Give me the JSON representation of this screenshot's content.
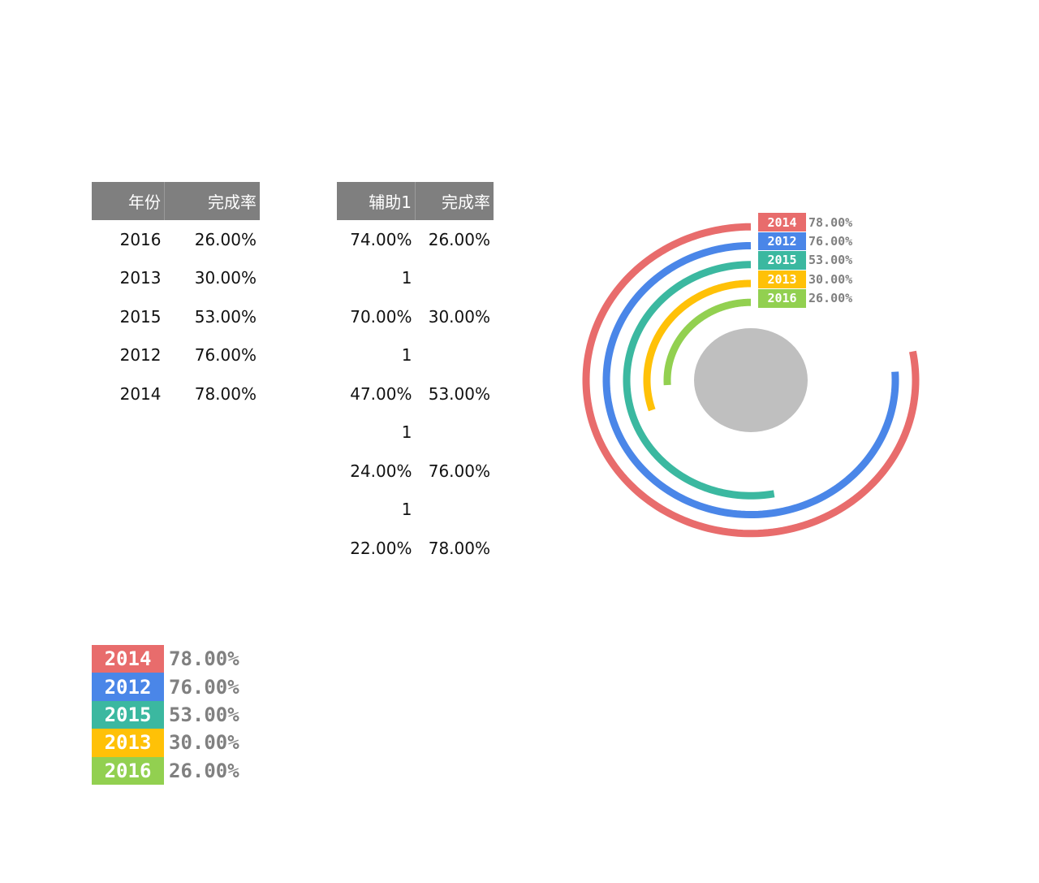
{
  "table1": {
    "headers": [
      "年份",
      "完成率"
    ],
    "rows": [
      [
        "2016",
        "26.00%"
      ],
      [
        "2013",
        "30.00%"
      ],
      [
        "2015",
        "53.00%"
      ],
      [
        "2012",
        "76.00%"
      ],
      [
        "2014",
        "78.00%"
      ]
    ]
  },
  "table2": {
    "headers": [
      "辅助1",
      "完成率"
    ],
    "rows": [
      [
        "74.00%",
        "26.00%"
      ],
      [
        "1",
        ""
      ],
      [
        "70.00%",
        "30.00%"
      ],
      [
        "1",
        ""
      ],
      [
        "47.00%",
        "53.00%"
      ],
      [
        "1",
        ""
      ],
      [
        "24.00%",
        "76.00%"
      ],
      [
        "1",
        ""
      ],
      [
        "22.00%",
        "78.00%"
      ]
    ]
  },
  "legend": [
    {
      "year": "2014",
      "pct": "78.00%",
      "color": "#e86c6c"
    },
    {
      "year": "2012",
      "pct": "76.00%",
      "color": "#4a86e8"
    },
    {
      "year": "2015",
      "pct": "53.00%",
      "color": "#3bb8a0"
    },
    {
      "year": "2013",
      "pct": "30.00%",
      "color": "#ffc107"
    },
    {
      "year": "2016",
      "pct": "26.00%",
      "color": "#92d050"
    }
  ],
  "chart_data": {
    "type": "radial-bar",
    "series": [
      {
        "name": "2014",
        "value": 78.0,
        "color": "#e86c6c"
      },
      {
        "name": "2012",
        "value": 76.0,
        "color": "#4a86e8"
      },
      {
        "name": "2015",
        "value": 53.0,
        "color": "#3bb8a0"
      },
      {
        "name": "2013",
        "value": 30.0,
        "color": "#ffc107"
      },
      {
        "name": "2016",
        "value": 26.0,
        "color": "#92d050"
      }
    ],
    "max": 100,
    "direction": "counterclockwise",
    "center_color": "#bfbfbf"
  }
}
